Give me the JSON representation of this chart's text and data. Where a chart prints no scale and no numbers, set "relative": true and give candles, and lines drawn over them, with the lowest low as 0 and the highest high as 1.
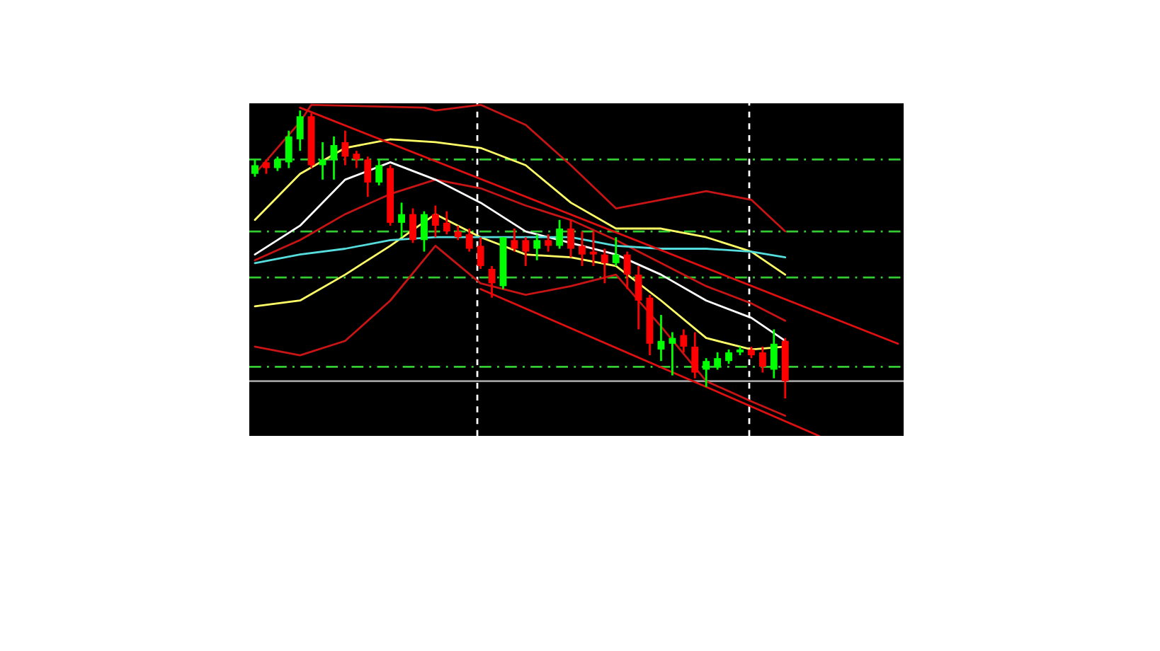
{
  "chart_data": {
    "type": "candlestick",
    "relative": true,
    "grid": false,
    "legend": false,
    "categories": [
      null,
      null,
      null,
      null,
      null,
      null,
      null,
      null,
      null,
      null,
      null,
      null,
      null,
      null,
      null,
      null,
      null,
      null,
      null,
      null,
      null,
      null,
      null,
      null,
      null,
      null,
      null,
      null,
      null,
      null,
      null,
      null,
      null,
      null,
      null,
      null,
      null,
      null,
      null,
      null,
      null,
      null,
      null,
      null,
      null,
      null,
      null,
      null,
      null,
      null,
      null,
      null,
      null,
      null,
      null,
      null,
      null,
      null
    ],
    "ohlc": [
      [
        0.78,
        0.83,
        0.77,
        0.81
      ],
      [
        0.82,
        0.83,
        0.78,
        0.8
      ],
      [
        0.8,
        0.84,
        0.79,
        0.83
      ],
      [
        0.82,
        0.93,
        0.8,
        0.91
      ],
      [
        0.9,
        1.0,
        0.86,
        0.98
      ],
      [
        0.98,
        0.99,
        0.8,
        0.81
      ],
      [
        0.81,
        0.89,
        0.76,
        0.83
      ],
      [
        0.83,
        0.91,
        0.76,
        0.88
      ],
      [
        0.89,
        0.93,
        0.81,
        0.84
      ],
      [
        0.85,
        0.86,
        0.8,
        0.83
      ],
      [
        0.83,
        0.84,
        0.7,
        0.75
      ],
      [
        0.75,
        0.83,
        0.74,
        0.81
      ],
      [
        0.8,
        0.81,
        0.6,
        0.61
      ],
      [
        0.61,
        0.68,
        0.56,
        0.64
      ],
      [
        0.64,
        0.66,
        0.54,
        0.55
      ],
      [
        0.55,
        0.65,
        0.51,
        0.64
      ],
      [
        0.64,
        0.67,
        0.56,
        0.6
      ],
      [
        0.61,
        0.65,
        0.57,
        0.58
      ],
      [
        0.58,
        0.6,
        0.55,
        0.56
      ],
      [
        0.57,
        0.59,
        0.51,
        0.52
      ],
      [
        0.53,
        0.56,
        0.45,
        0.46
      ],
      [
        0.45,
        0.46,
        0.35,
        0.4
      ],
      [
        0.39,
        0.56,
        0.38,
        0.56
      ],
      [
        0.55,
        0.59,
        0.51,
        0.52
      ],
      [
        0.55,
        0.56,
        0.46,
        0.51
      ],
      [
        0.52,
        0.57,
        0.48,
        0.55
      ],
      [
        0.55,
        0.57,
        0.51,
        0.53
      ],
      [
        0.53,
        0.62,
        0.52,
        0.59
      ],
      [
        0.59,
        0.62,
        0.49,
        0.52
      ],
      [
        0.53,
        0.58,
        0.46,
        0.5
      ],
      [
        0.51,
        0.58,
        0.46,
        0.5
      ],
      [
        0.5,
        0.52,
        0.4,
        0.47
      ],
      [
        0.47,
        0.56,
        0.46,
        0.5
      ],
      [
        0.5,
        0.51,
        0.38,
        0.43
      ],
      [
        0.43,
        0.46,
        0.24,
        0.34
      ],
      [
        0.35,
        0.36,
        0.15,
        0.19
      ],
      [
        0.17,
        0.29,
        0.13,
        0.2
      ],
      [
        0.19,
        0.23,
        0.08,
        0.21
      ],
      [
        0.22,
        0.24,
        0.16,
        0.18
      ],
      [
        0.18,
        0.23,
        0.07,
        0.09
      ],
      [
        0.1,
        0.14,
        0.04,
        0.13
      ],
      [
        0.11,
        0.16,
        0.1,
        0.14
      ],
      [
        0.13,
        0.17,
        0.12,
        0.16
      ],
      [
        0.16,
        0.18,
        0.15,
        0.17
      ],
      [
        0.17,
        0.18,
        0.14,
        0.15
      ],
      [
        0.16,
        0.18,
        0.09,
        0.11
      ],
      [
        0.1,
        0.24,
        0.07,
        0.19
      ],
      [
        0.2,
        0.21,
        0.0,
        0.06
      ],
      null,
      null,
      null,
      null,
      null,
      null,
      null,
      null,
      null,
      null
    ],
    "colors": [
      "#00ff00",
      "#ff0000",
      "#00ff00",
      "#00ff00",
      "#00ff00",
      "#ff0000",
      "#00ff00",
      "#00ff00",
      "#ff0000",
      "#ff0000",
      "#ff0000",
      "#00ff00",
      "#ff0000",
      "#00ff00",
      "#ff0000",
      "#00ff00",
      "#ff0000",
      "#ff0000",
      "#ff0000",
      "#ff0000",
      "#ff0000",
      "#ff0000",
      "#00ff00",
      "#ff0000",
      "#ff0000",
      "#00ff00",
      "#ff0000",
      "#00ff00",
      "#ff0000",
      "#ff0000",
      "#ff0000",
      "#ff0000",
      "#00ff00",
      "#ff0000",
      "#ff0000",
      "#ff0000",
      "#00ff00",
      "#00ff00",
      "#ff0000",
      "#ff0000",
      "#00ff00",
      "#00ff00",
      "#00ff00",
      "#00ff00",
      "#ff0000",
      "#ff0000",
      "#00ff00",
      "#ff0000",
      null,
      null,
      null,
      null,
      null,
      null,
      null,
      null,
      null,
      null
    ],
    "series": [
      {
        "type": "line",
        "color": "#c81414",
        "values": [
          0.78,
          null,
          null,
          null,
          0.96,
          1.02,
          null,
          null,
          null,
          null,
          null,
          null,
          null,
          null,
          null,
          1.01,
          1.0,
          null,
          null,
          null,
          1.02,
          null,
          null,
          null,
          0.95,
          null,
          null,
          null,
          0.81,
          null,
          null,
          null,
          0.66,
          null,
          null,
          null,
          0.69,
          null,
          null,
          null,
          0.72,
          null,
          null,
          null,
          0.69,
          null,
          null,
          0.58,
          null,
          null,
          null,
          null,
          null,
          null,
          null,
          null,
          null,
          null
        ]
      },
      {
        "type": "line",
        "color": "#c81414",
        "values": [
          0.18,
          null,
          null,
          null,
          0.15,
          null,
          null,
          null,
          0.2,
          null,
          null,
          null,
          0.34,
          null,
          null,
          null,
          0.53,
          null,
          null,
          null,
          0.4,
          null,
          null,
          null,
          0.36,
          null,
          null,
          null,
          0.39,
          null,
          null,
          null,
          0.43,
          null,
          null,
          null,
          0.25,
          null,
          null,
          null,
          0.06,
          null,
          null,
          null,
          -0.01,
          null,
          null,
          -0.06,
          null,
          null,
          null,
          null,
          null,
          null,
          null,
          null,
          null,
          null
        ]
      },
      {
        "type": "line",
        "color": "#c81414",
        "values": [
          0.48,
          null,
          null,
          null,
          0.55,
          null,
          null,
          null,
          0.64,
          null,
          null,
          null,
          0.71,
          null,
          null,
          null,
          0.76,
          null,
          null,
          null,
          0.73,
          null,
          null,
          null,
          0.67,
          null,
          null,
          null,
          0.62,
          null,
          null,
          null,
          0.55,
          null,
          null,
          null,
          0.47,
          null,
          null,
          null,
          0.39,
          null,
          null,
          null,
          0.33,
          null,
          null,
          0.27,
          null,
          null,
          null,
          null,
          null,
          null,
          null,
          null,
          null,
          null
        ]
      },
      {
        "type": "line",
        "color": "#ffff66",
        "values": [
          0.62,
          null,
          null,
          null,
          0.78,
          null,
          null,
          null,
          0.87,
          null,
          null,
          null,
          0.9,
          null,
          null,
          null,
          0.89,
          null,
          null,
          null,
          0.87,
          null,
          null,
          null,
          0.81,
          null,
          null,
          null,
          0.68,
          null,
          null,
          null,
          0.59,
          null,
          null,
          null,
          0.59,
          null,
          null,
          null,
          0.56,
          null,
          null,
          null,
          0.51,
          null,
          null,
          0.43,
          null,
          null,
          null,
          null,
          null,
          null,
          null,
          null,
          null,
          null
        ]
      },
      {
        "type": "line",
        "color": "#ffff66",
        "values": [
          0.32,
          null,
          null,
          null,
          0.34,
          null,
          null,
          null,
          0.43,
          null,
          null,
          null,
          0.53,
          null,
          null,
          null,
          0.64,
          null,
          null,
          null,
          0.56,
          null,
          null,
          null,
          0.5,
          null,
          null,
          null,
          0.49,
          null,
          null,
          null,
          0.46,
          null,
          null,
          null,
          0.34,
          null,
          null,
          null,
          0.21,
          null,
          null,
          null,
          0.17,
          null,
          null,
          0.18,
          null,
          null,
          null,
          null,
          null,
          null,
          null,
          null,
          null,
          null
        ]
      },
      {
        "type": "line",
        "color": "#ffffff",
        "values": [
          0.5,
          null,
          null,
          null,
          0.6,
          null,
          null,
          null,
          0.76,
          null,
          null,
          null,
          0.82,
          null,
          null,
          null,
          0.76,
          null,
          null,
          null,
          0.68,
          null,
          null,
          null,
          0.58,
          null,
          null,
          null,
          0.54,
          null,
          null,
          null,
          0.5,
          null,
          null,
          null,
          0.43,
          null,
          null,
          null,
          0.34,
          null,
          null,
          null,
          0.28,
          null,
          null,
          0.2,
          null,
          null,
          null,
          null,
          null,
          null,
          null,
          null,
          null,
          null
        ]
      },
      {
        "type": "line",
        "color": "#55dddd",
        "values": [
          0.47,
          null,
          null,
          null,
          0.5,
          null,
          null,
          null,
          0.52,
          null,
          null,
          null,
          0.55,
          null,
          null,
          null,
          0.56,
          null,
          null,
          null,
          0.56,
          null,
          null,
          null,
          0.56,
          null,
          null,
          null,
          0.56,
          null,
          null,
          null,
          0.53,
          null,
          null,
          null,
          0.52,
          null,
          null,
          null,
          0.52,
          null,
          null,
          null,
          0.51,
          null,
          null,
          0.49,
          null,
          null,
          null,
          null,
          null,
          null,
          null,
          null,
          null,
          null
        ]
      },
      {
        "type": "line",
        "color": "#e01010",
        "values": [
          null,
          null,
          null,
          null,
          1.01,
          null,
          null,
          null,
          null,
          null,
          null,
          null,
          null,
          null,
          null,
          null,
          null,
          null,
          null,
          null,
          null,
          null,
          null,
          null,
          null,
          null,
          null,
          null,
          null,
          null,
          null,
          null,
          null,
          null,
          null,
          null,
          null,
          null,
          null,
          null,
          null,
          null,
          null,
          null,
          null,
          null,
          null,
          null,
          null,
          null,
          null,
          null,
          null,
          null,
          null,
          null,
          null,
          0.19
        ]
      },
      {
        "type": "line",
        "color": "#e01010",
        "values": [
          null,
          null,
          null,
          null,
          null,
          null,
          null,
          null,
          null,
          null,
          null,
          null,
          null,
          null,
          null,
          null,
          null,
          null,
          null,
          null,
          0.38,
          null,
          null,
          null,
          null,
          null,
          null,
          null,
          null,
          null,
          null,
          null,
          null,
          null,
          null,
          null,
          null,
          null,
          null,
          null,
          null,
          null,
          null,
          null,
          null,
          null,
          null,
          null,
          null,
          null,
          -0.13,
          null,
          null,
          null,
          null,
          null,
          null,
          null
        ]
      }
    ],
    "ref_lines": [
      {
        "axis": "y",
        "value": 0.83,
        "color": "#33cc33",
        "line_style": "dashed"
      },
      {
        "axis": "y",
        "value": 0.58,
        "color": "#33cc33",
        "line_style": "dashed"
      },
      {
        "axis": "y",
        "value": 0.42,
        "color": "#33cc33",
        "line_style": "dashed"
      },
      {
        "axis": "y",
        "value": 0.11,
        "color": "#33cc33",
        "line_style": "dashed"
      },
      {
        "axis": "y",
        "value": 0.06,
        "color": "#a0a0a0",
        "line_style": "solid"
      }
    ]
  }
}
